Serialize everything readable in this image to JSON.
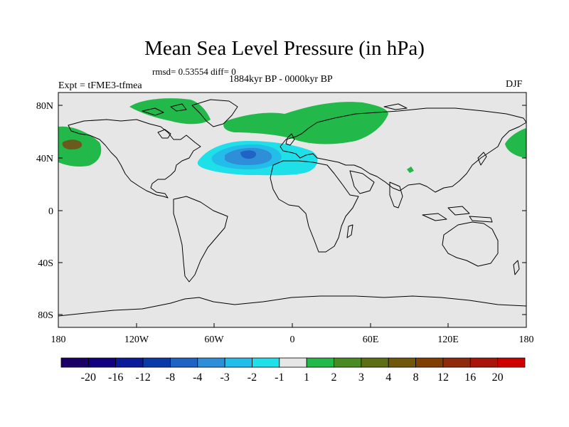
{
  "title": "Mean Sea Level Pressure (in hPa)",
  "stats": "rmsd= 0.53554 diff= 0",
  "period": "1884kyr BP - 0000kyr BP",
  "experiment": "Expt = tFME3-tfmea",
  "season": "DJF",
  "lat_labels": [
    "80N",
    "40N",
    "0",
    "40S",
    "80S"
  ],
  "lon_labels": [
    "180",
    "120W",
    "60W",
    "0",
    "60E",
    "120E",
    "180"
  ],
  "colorbar": {
    "colors": [
      "#1a0066",
      "#10007f",
      "#0a1a99",
      "#0a3aa8",
      "#1f63c4",
      "#2e8fd8",
      "#22bde8",
      "#1fe0e8",
      "#e6e6e6",
      "#22b84a",
      "#4a8a22",
      "#5e6e12",
      "#70570a",
      "#7f4000",
      "#8f2a0a",
      "#a8140a",
      "#cc0000"
    ],
    "labels": [
      "-20",
      "-16",
      "-12",
      "-8",
      "-4",
      "-3",
      "-2",
      "-1",
      "1",
      "2",
      "3",
      "4",
      "8",
      "12",
      "16",
      "20"
    ]
  },
  "map_colors": {
    "background": "#e6e6e6",
    "positive_1_2": "#22b84a",
    "positive_3_4": "#6a5a1e",
    "negative_1_2": "#1fe0e8",
    "negative_2_3": "#22bde8",
    "negative_3_4": "#2e8fd8",
    "negative_4_8": "#1f63c4"
  }
}
